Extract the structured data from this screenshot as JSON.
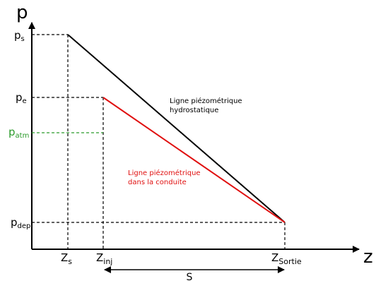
{
  "axes": {
    "y_label": "p",
    "x_label": "z"
  },
  "y_ticks": [
    {
      "main": "p",
      "sub": "s"
    },
    {
      "main": "p",
      "sub": "e"
    },
    {
      "main": "p",
      "sub": "atm"
    },
    {
      "main": "p",
      "sub": "dep"
    }
  ],
  "x_ticks": [
    {
      "main": "Z",
      "sub": "s"
    },
    {
      "main": "Z",
      "sub": "inj"
    },
    {
      "main": "Z",
      "sub": "Sortie"
    }
  ],
  "lines": {
    "hydrostatic": {
      "label_1": "Ligne piézométrique",
      "label_2": "hydrostatique",
      "color": "#000000"
    },
    "pipe": {
      "label_1": "Ligne piézométrique",
      "label_2": "dans la conduite",
      "color": "#e01010"
    }
  },
  "colors": {
    "atm": "#2a9a2a",
    "axis": "#000000"
  },
  "span_label": "S"
}
